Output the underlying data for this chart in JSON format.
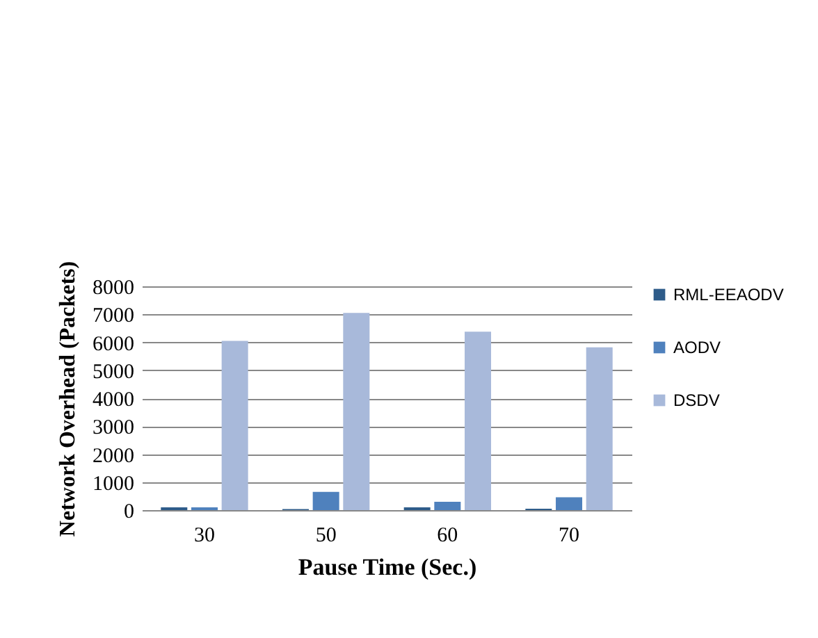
{
  "chart_data": {
    "type": "bar",
    "xlabel": "Pause Time (Sec.)",
    "ylabel": "Network Overhead (Packets)",
    "categories": [
      "30",
      "50",
      "60",
      "70"
    ],
    "series": [
      {
        "name": "RML-EEAODV",
        "color": "#2e5c8a",
        "values": [
          100,
          40,
          100,
          50
        ]
      },
      {
        "name": "AODV",
        "color": "#4f81bd",
        "values": [
          100,
          650,
          300,
          460
        ]
      },
      {
        "name": "DSDV",
        "color": "#a8b9da",
        "values": [
          6050,
          7050,
          6380,
          5820
        ]
      }
    ],
    "ylim": [
      0,
      8000
    ],
    "yticks": [
      0,
      1000,
      2000,
      3000,
      4000,
      5000,
      6000,
      7000,
      8000
    ],
    "grid": "y",
    "legend": "right"
  }
}
